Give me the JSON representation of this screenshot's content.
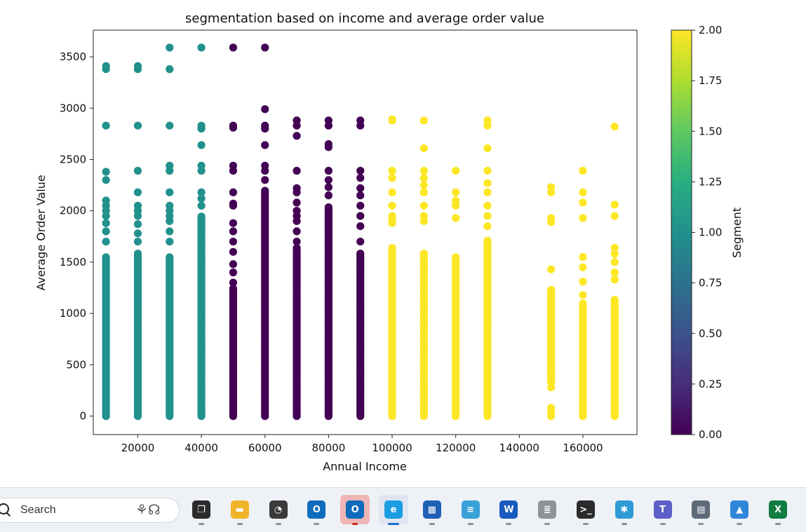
{
  "chart_data": {
    "type": "scatter",
    "title": "segmentation based on income and average order value",
    "xlabel": "Annual Income",
    "ylabel": "Average Order Value",
    "xlim": [
      6000,
      177000
    ],
    "ylim": [
      -180,
      3760
    ],
    "xticks": [
      20000,
      40000,
      60000,
      80000,
      100000,
      120000,
      140000,
      160000
    ],
    "yticks": [
      0,
      500,
      1000,
      1500,
      2000,
      2500,
      3000,
      3500
    ],
    "colorbar": {
      "label": "Segment",
      "range": [
        0,
        2
      ],
      "ticks": [
        "0.00",
        "0.25",
        "0.50",
        "0.75",
        "1.00",
        "1.25",
        "1.50",
        "1.75",
        "2.00"
      ],
      "colormap": "viridis"
    },
    "segment_colors": {
      "0": "#440154",
      "1": "#21918c",
      "2": "#fde725"
    },
    "series": [
      {
        "x": 10000,
        "segment": 1,
        "dense_range": [
          0,
          1550
        ],
        "extra_y": [
          1700,
          1800,
          1880,
          1950,
          2000,
          2050,
          2100,
          2300,
          2380,
          2830,
          3380,
          3410
        ]
      },
      {
        "x": 20000,
        "segment": 1,
        "dense_range": [
          0,
          1600
        ],
        "extra_y": [
          1700,
          1780,
          1870,
          1950,
          2000,
          2050,
          2180,
          2390,
          2830,
          3380,
          3410
        ]
      },
      {
        "x": 30000,
        "segment": 1,
        "dense_range": [
          0,
          1550
        ],
        "extra_y": [
          1700,
          1800,
          1900,
          1950,
          2000,
          2050,
          2180,
          2390,
          2440,
          2830,
          3380,
          3590
        ]
      },
      {
        "x": 40000,
        "segment": 1,
        "dense_range": [
          0,
          1950
        ],
        "extra_y": [
          2050,
          2120,
          2180,
          2390,
          2440,
          2640,
          2800,
          2830,
          3590
        ]
      },
      {
        "x": 50000,
        "segment": 0,
        "dense_range": [
          0,
          1250
        ],
        "extra_y": [
          1300,
          1400,
          1480,
          1600,
          1700,
          1800,
          1880,
          2050,
          2070,
          2180,
          2390,
          2440,
          2810,
          2830,
          3590
        ]
      },
      {
        "x": 60000,
        "segment": 0,
        "dense_range": [
          0,
          2200
        ],
        "extra_y": [
          2300,
          2390,
          2440,
          2640,
          2800,
          2830,
          2990,
          3590
        ]
      },
      {
        "x": 70000,
        "segment": 0,
        "dense_range": [
          0,
          1650
        ],
        "extra_y": [
          1700,
          1800,
          1900,
          1950,
          2000,
          2080,
          2180,
          2220,
          2390,
          2730,
          2830,
          2880
        ]
      },
      {
        "x": 80000,
        "segment": 0,
        "dense_range": [
          0,
          2050
        ],
        "extra_y": [
          2150,
          2230,
          2300,
          2390,
          2620,
          2650,
          2830,
          2880
        ]
      },
      {
        "x": 90000,
        "segment": 0,
        "dense_range": [
          0,
          1600
        ],
        "extra_y": [
          1700,
          1850,
          1950,
          2050,
          2150,
          2220,
          2320,
          2390,
          2830,
          2880
        ]
      },
      {
        "x": 100000,
        "segment": 2,
        "dense_range": [
          0,
          1650
        ],
        "extra_y": [
          1880,
          1920,
          1950,
          2050,
          2180,
          2320,
          2390,
          2880,
          2890
        ]
      },
      {
        "x": 110000,
        "segment": 2,
        "dense_range": [
          0,
          1600
        ],
        "extra_y": [
          1900,
          1950,
          2050,
          2180,
          2250,
          2320,
          2390,
          2610,
          2880
        ]
      },
      {
        "x": 120000,
        "segment": 2,
        "dense_range": [
          0,
          1550
        ],
        "extra_y": [
          1930,
          2050,
          2100,
          2180,
          2390
        ]
      },
      {
        "x": 130000,
        "segment": 2,
        "dense_range": [
          0,
          1720
        ],
        "extra_y": [
          1850,
          1950,
          2050,
          2180,
          2270,
          2390,
          2610,
          2830,
          2880
        ]
      },
      {
        "x": 150000,
        "segment": 2,
        "dense_range": [
          330,
          1230
        ],
        "extra_y": [
          0,
          40,
          80,
          280,
          420,
          1430,
          1890,
          1930,
          2180,
          2230
        ]
      },
      {
        "x": 160000,
        "segment": 2,
        "dense_range": [
          0,
          1100
        ],
        "extra_y": [
          1180,
          1310,
          1450,
          1550,
          1930,
          2080,
          2180,
          2390
        ]
      },
      {
        "x": 170000,
        "segment": 2,
        "dense_range": [
          0,
          1150
        ],
        "extra_y": [
          1330,
          1400,
          1500,
          1580,
          1640,
          1950,
          2060,
          2820
        ]
      }
    ]
  },
  "taskbar": {
    "search_placeholder": "Search",
    "apps": [
      {
        "name": "task-view",
        "icon": "task-view-icon",
        "glyph": "❐",
        "color": "#2b2b2b"
      },
      {
        "name": "file-explorer",
        "icon": "folder-icon",
        "glyph": "▬",
        "color": "#f0b429"
      },
      {
        "name": "clock-app",
        "icon": "clock-icon",
        "glyph": "◔",
        "color": "#3a3a3a"
      },
      {
        "name": "outlook",
        "icon": "outlook-icon",
        "glyph": "O",
        "color": "#0f6cbd"
      },
      {
        "name": "outlook-alert",
        "icon": "outlook-warning-icon",
        "glyph": "O",
        "color": "#0f6cbd"
      },
      {
        "name": "edge",
        "icon": "edge-icon",
        "glyph": "e",
        "color": "#1b9de2"
      },
      {
        "name": "store",
        "icon": "store-icon",
        "glyph": "▦",
        "color": "#1f5fb5"
      },
      {
        "name": "notepad",
        "icon": "notepad-icon",
        "glyph": "≡",
        "color": "#3aa0d8"
      },
      {
        "name": "word",
        "icon": "word-icon",
        "glyph": "W",
        "color": "#185abd"
      },
      {
        "name": "database",
        "icon": "database-icon",
        "glyph": "≣",
        "color": "#8e9399"
      },
      {
        "name": "terminal",
        "icon": "terminal-icon",
        "glyph": ">_",
        "color": "#2b2b2b"
      },
      {
        "name": "paint",
        "icon": "palette-icon",
        "glyph": "✱",
        "color": "#2e9bd6"
      },
      {
        "name": "teams",
        "icon": "teams-icon",
        "glyph": "T",
        "color": "#5b5fc7"
      },
      {
        "name": "calculator",
        "icon": "calculator-icon",
        "glyph": "▤",
        "color": "#5e6a78"
      },
      {
        "name": "photos",
        "icon": "photos-icon",
        "glyph": "▲",
        "color": "#2f86d9"
      },
      {
        "name": "excel",
        "icon": "excel-icon",
        "glyph": "X",
        "color": "#107c41"
      }
    ]
  }
}
